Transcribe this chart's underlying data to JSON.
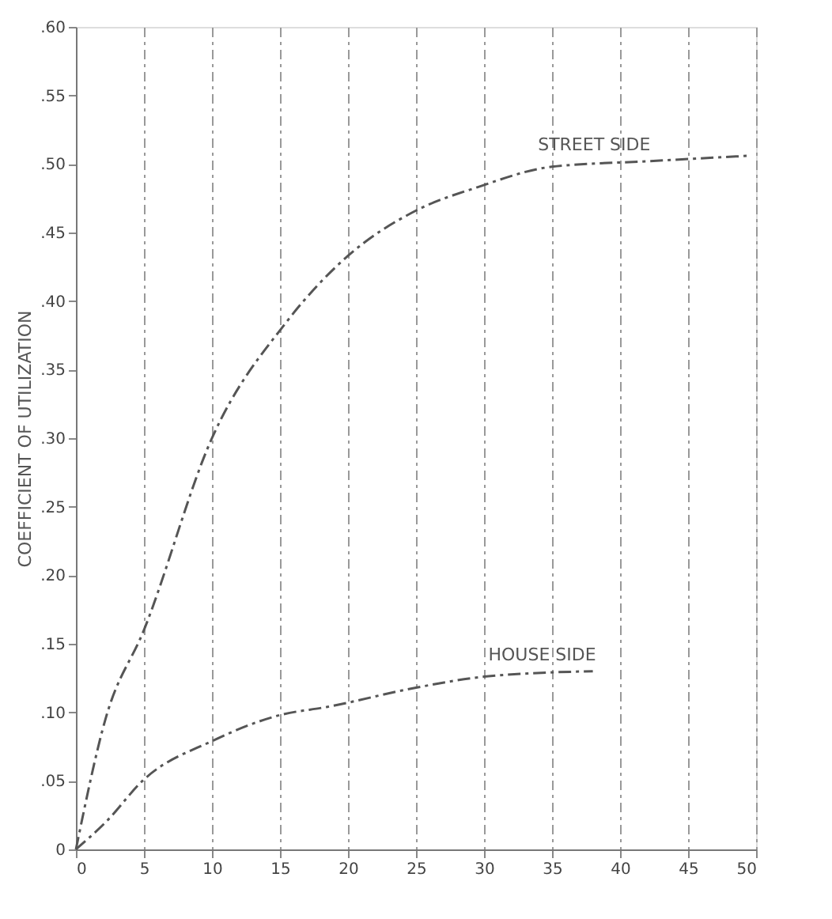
{
  "chart_data": {
    "type": "line",
    "ylabel": "COEFFICIENT OF UTILIZATION",
    "xlim": [
      0,
      50
    ],
    "xticks": [
      0,
      5,
      10,
      15,
      20,
      25,
      30,
      35,
      40,
      45,
      50
    ],
    "ylim": [
      0,
      0.6
    ],
    "yticks": [
      0,
      {
        "value": 0.05,
        "label": ".05"
      },
      {
        "value": 0.1,
        "label": ".10"
      },
      {
        "value": 0.15,
        "label": ".15"
      },
      {
        "value": 0.2,
        "label": ".20"
      },
      {
        "value": 0.25,
        "label": ".25"
      },
      {
        "value": 0.3,
        "label": ".30"
      },
      {
        "value": 0.35,
        "label": ".35"
      },
      {
        "value": 0.4,
        "label": ".40"
      },
      {
        "value": 0.45,
        "label": ".45"
      },
      {
        "value": 0.5,
        "label": ".50"
      },
      {
        "value": 0.55,
        "label": ".55"
      },
      {
        "value": 0.6,
        "label": ".60"
      }
    ],
    "grid": "x",
    "line_style": "dashed",
    "series": [
      {
        "color": "#555555",
        "x": [
          0,
          2.2,
          5,
          10,
          15.5,
          20,
          25,
          29.5,
          35,
          42,
          49.5
        ],
        "values": [
          0,
          0.096,
          0.16,
          0.3,
          0.385,
          0.433,
          0.466,
          0.483,
          0.498,
          0.502,
          0.506
        ]
      },
      {
        "color": "#555555",
        "x": [
          0,
          2.2,
          5,
          10,
          15,
          18.5,
          25,
          30,
          38
        ],
        "values": [
          0,
          0.02,
          0.051,
          0.079,
          0.098,
          0.104,
          0.118,
          0.126,
          0.13
        ]
      }
    ],
    "annotations": [
      {
        "text": "STREET SIDE",
        "x": 42,
        "y": 0.502
      },
      {
        "text": "HOUSE SIDE",
        "x": 38,
        "y": 0.13
      }
    ]
  }
}
